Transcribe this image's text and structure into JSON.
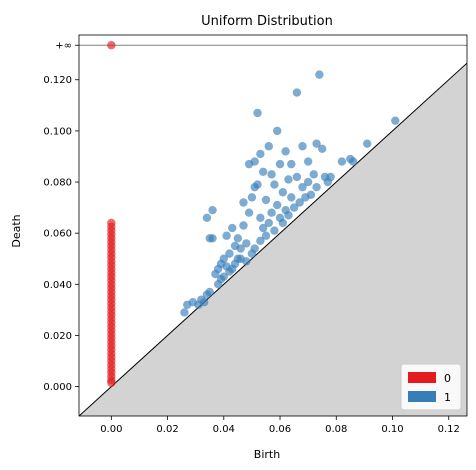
{
  "chart_data": {
    "type": "scatter",
    "title": "Uniform Distribution",
    "xlabel": "Birth",
    "ylabel": "Death",
    "xlim": [
      -0.0115,
      0.1265
    ],
    "ylim": [
      -0.0115,
      0.1375
    ],
    "x_ticks": [
      0.0,
      0.02,
      0.04,
      0.06,
      0.08,
      0.1,
      0.12
    ],
    "x_tick_labels": [
      "0.00",
      "0.02",
      "0.04",
      "0.06",
      "0.08",
      "0.10",
      "0.12"
    ],
    "y_ticks": [
      0.0,
      0.02,
      0.04,
      0.06,
      0.08,
      0.1,
      0.12,
      0.1335
    ],
    "y_tick_labels": [
      "0.000",
      "0.020",
      "0.040",
      "0.060",
      "0.080",
      "0.100",
      "0.120",
      "+∞"
    ],
    "infinity_line_y": 0.1335,
    "diagonal": true,
    "grid": false,
    "legend_position": "lower-right",
    "series": [
      {
        "name": "0",
        "color": "#e41a1c",
        "points": [
          [
            0.0,
            0.1335
          ],
          [
            0.0,
            0.064
          ],
          [
            0.0,
            0.0625
          ],
          [
            0.0,
            0.061
          ],
          [
            0.0,
            0.0595
          ],
          [
            0.0,
            0.058
          ],
          [
            0.0,
            0.0565
          ],
          [
            0.0,
            0.055
          ],
          [
            0.0,
            0.0535
          ],
          [
            0.0,
            0.052
          ],
          [
            0.0,
            0.0505
          ],
          [
            0.0,
            0.049
          ],
          [
            0.0,
            0.0475
          ],
          [
            0.0,
            0.046
          ],
          [
            0.0,
            0.0445
          ],
          [
            0.0,
            0.043
          ],
          [
            0.0,
            0.0415
          ],
          [
            0.0,
            0.04
          ],
          [
            0.0,
            0.0385
          ],
          [
            0.0,
            0.037
          ],
          [
            0.0,
            0.0355
          ],
          [
            0.0,
            0.034
          ],
          [
            0.0,
            0.0325
          ],
          [
            0.0,
            0.031
          ],
          [
            0.0,
            0.0295
          ],
          [
            0.0,
            0.028
          ],
          [
            0.0,
            0.0265
          ],
          [
            0.0,
            0.025
          ],
          [
            0.0,
            0.0235
          ],
          [
            0.0,
            0.022
          ],
          [
            0.0,
            0.0205
          ],
          [
            0.0,
            0.019
          ],
          [
            0.0,
            0.0175
          ],
          [
            0.0,
            0.016
          ],
          [
            0.0,
            0.0145
          ],
          [
            0.0,
            0.013
          ],
          [
            0.0,
            0.0115
          ],
          [
            0.0,
            0.01
          ],
          [
            0.0,
            0.0085
          ],
          [
            0.0,
            0.007
          ],
          [
            0.0,
            0.0055
          ],
          [
            0.0,
            0.004
          ],
          [
            0.0,
            0.0025
          ],
          [
            0.0,
            0.0015
          ]
        ]
      },
      {
        "name": "1",
        "color": "#377eb8",
        "points": [
          [
            0.026,
            0.029
          ],
          [
            0.027,
            0.032
          ],
          [
            0.029,
            0.033
          ],
          [
            0.031,
            0.032
          ],
          [
            0.032,
            0.034
          ],
          [
            0.033,
            0.033
          ],
          [
            0.034,
            0.036
          ],
          [
            0.035,
            0.037
          ],
          [
            0.036,
            0.058
          ],
          [
            0.035,
            0.058
          ],
          [
            0.034,
            0.066
          ],
          [
            0.036,
            0.069
          ],
          [
            0.037,
            0.044
          ],
          [
            0.038,
            0.046
          ],
          [
            0.038,
            0.04
          ],
          [
            0.039,
            0.048
          ],
          [
            0.039,
            0.042
          ],
          [
            0.04,
            0.05
          ],
          [
            0.04,
            0.043
          ],
          [
            0.041,
            0.047
          ],
          [
            0.041,
            0.059
          ],
          [
            0.042,
            0.045
          ],
          [
            0.042,
            0.052
          ],
          [
            0.043,
            0.062
          ],
          [
            0.043,
            0.046
          ],
          [
            0.044,
            0.055
          ],
          [
            0.044,
            0.048
          ],
          [
            0.045,
            0.058
          ],
          [
            0.045,
            0.05
          ],
          [
            0.046,
            0.054
          ],
          [
            0.046,
            0.05
          ],
          [
            0.047,
            0.063
          ],
          [
            0.047,
            0.072
          ],
          [
            0.048,
            0.049
          ],
          [
            0.048,
            0.056
          ],
          [
            0.049,
            0.068
          ],
          [
            0.049,
            0.087
          ],
          [
            0.05,
            0.052
          ],
          [
            0.05,
            0.074
          ],
          [
            0.051,
            0.088
          ],
          [
            0.051,
            0.078
          ],
          [
            0.051,
            0.054
          ],
          [
            0.052,
            0.079
          ],
          [
            0.052,
            0.107
          ],
          [
            0.053,
            0.066
          ],
          [
            0.053,
            0.091
          ],
          [
            0.053,
            0.057
          ],
          [
            0.054,
            0.084
          ],
          [
            0.054,
            0.062
          ],
          [
            0.055,
            0.073
          ],
          [
            0.055,
            0.059
          ],
          [
            0.056,
            0.094
          ],
          [
            0.056,
            0.064
          ],
          [
            0.057,
            0.083
          ],
          [
            0.057,
            0.068
          ],
          [
            0.058,
            0.079
          ],
          [
            0.058,
            0.061
          ],
          [
            0.059,
            0.1
          ],
          [
            0.059,
            0.071
          ],
          [
            0.06,
            0.087
          ],
          [
            0.06,
            0.066
          ],
          [
            0.061,
            0.076
          ],
          [
            0.061,
            0.064
          ],
          [
            0.062,
            0.092
          ],
          [
            0.062,
            0.069
          ],
          [
            0.063,
            0.081
          ],
          [
            0.063,
            0.067
          ],
          [
            0.064,
            0.074
          ],
          [
            0.064,
            0.087
          ],
          [
            0.065,
            0.07
          ],
          [
            0.066,
            0.115
          ],
          [
            0.066,
            0.082
          ],
          [
            0.067,
            0.072
          ],
          [
            0.068,
            0.094
          ],
          [
            0.068,
            0.078
          ],
          [
            0.069,
            0.074
          ],
          [
            0.07,
            0.088
          ],
          [
            0.07,
            0.08
          ],
          [
            0.071,
            0.075
          ],
          [
            0.072,
            0.083
          ],
          [
            0.073,
            0.095
          ],
          [
            0.073,
            0.078
          ],
          [
            0.074,
            0.122
          ],
          [
            0.075,
            0.093
          ],
          [
            0.076,
            0.082
          ],
          [
            0.077,
            0.08
          ],
          [
            0.078,
            0.082
          ],
          [
            0.082,
            0.088
          ],
          [
            0.085,
            0.089
          ],
          [
            0.086,
            0.088
          ],
          [
            0.091,
            0.095
          ],
          [
            0.101,
            0.104
          ]
        ]
      }
    ]
  }
}
